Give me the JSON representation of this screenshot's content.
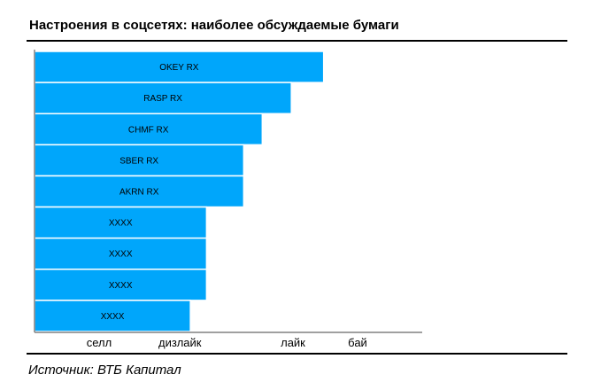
{
  "title": "Настроения в соцсетях: наиболее обсуждаемые бумаги",
  "source": "Источник: ВТБ Капитал",
  "colors": {
    "bar": "#00A6FB",
    "bar_border": "#ffffff",
    "axis": "#808080",
    "text": "#000000"
  },
  "chart_data": {
    "type": "bar",
    "orientation": "horizontal",
    "categories": [
      "OKEY RX",
      "RASP RX",
      "CHMF RX",
      "SBER RX",
      "AKRN RX",
      "XXXX",
      "XXXX",
      "XXXX",
      "XXXX"
    ],
    "values": [
      3.58,
      3.18,
      2.82,
      2.59,
      2.59,
      2.13,
      2.13,
      2.13,
      1.93
    ],
    "x_ticks": [
      {
        "value": 0.8,
        "label": "селл"
      },
      {
        "value": 1.8,
        "label": "дизлайк"
      },
      {
        "value": 3.2,
        "label": "лайк"
      },
      {
        "value": 4.0,
        "label": "бай"
      }
    ],
    "xlim": [
      0,
      4.8
    ],
    "xlabel": "",
    "ylabel": "",
    "grid": false,
    "legend": "none"
  }
}
